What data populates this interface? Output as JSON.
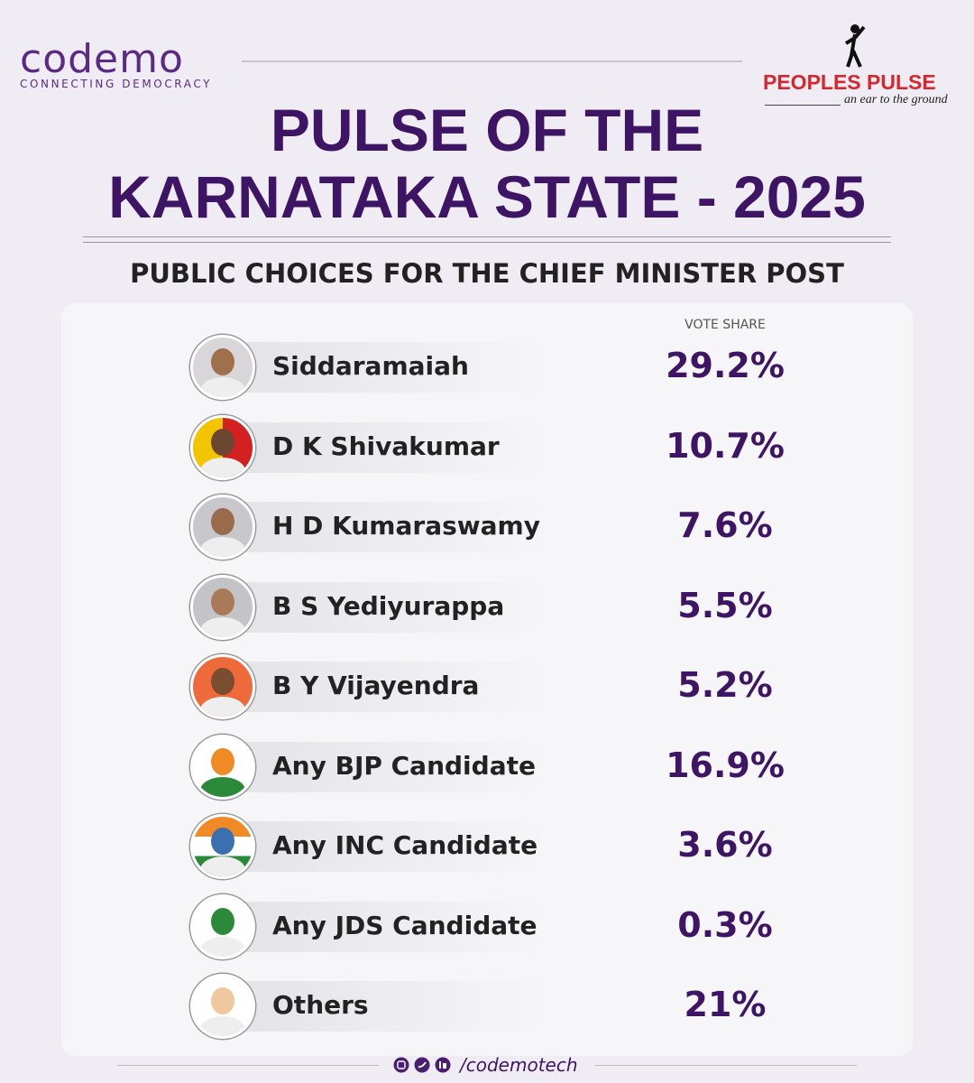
{
  "header": {
    "brand": "codemo",
    "brand_tagline": "CONNECTING DEMOCRACY",
    "partner": "PEOPLES PULSE",
    "partner_tagline": "an ear to the ground"
  },
  "title": [
    "PULSE OF THE",
    "KARNATAKA STATE - 2025"
  ],
  "subtitle": "PUBLIC CHOICES FOR THE CHIEF MINISTER POST",
  "table": {
    "column_header": "VOTE SHARE",
    "rows": [
      {
        "name": "Siddaramaiah",
        "share": "29.2%"
      },
      {
        "name": "D K Shivakumar",
        "share": "10.7%"
      },
      {
        "name": "H D Kumaraswamy",
        "share": "7.6%"
      },
      {
        "name": "B S Yediyurappa",
        "share": "5.5%"
      },
      {
        "name": "B Y Vijayendra",
        "share": "5.2%"
      },
      {
        "name": "Any BJP Candidate",
        "share": "16.9%"
      },
      {
        "name": "Any INC Candidate",
        "share": "3.6%"
      },
      {
        "name": "Any JDS Candidate",
        "share": "0.3%"
      },
      {
        "name": "Others",
        "share": "21%"
      }
    ]
  },
  "footer": {
    "handle": "/codemotech"
  }
}
